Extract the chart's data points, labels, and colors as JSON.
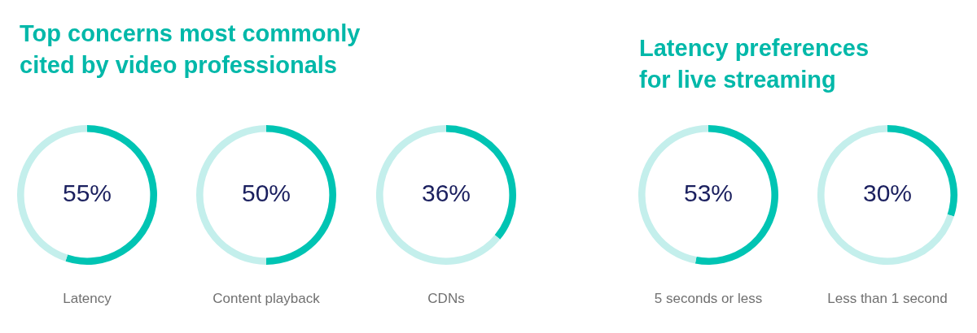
{
  "chart_data": [
    {
      "type": "donut",
      "title": "Top concerns most commonly cited by video professionals",
      "xlabel": "Latency",
      "categories": [
        null,
        null
      ],
      "values": [
        55,
        45
      ],
      "colors": [
        "#00c4b3",
        "#c4efec"
      ],
      "annotations": [
        "55%"
      ]
    },
    {
      "type": "donut",
      "xlabel": "Content playback",
      "categories": [
        null,
        null
      ],
      "values": [
        50,
        50
      ],
      "colors": [
        "#00c4b3",
        "#c4efec"
      ],
      "annotations": [
        "50%"
      ]
    },
    {
      "type": "donut",
      "xlabel": "CDNs",
      "categories": [
        null,
        null
      ],
      "values": [
        36,
        64
      ],
      "colors": [
        "#00c4b3",
        "#c4efec"
      ],
      "annotations": [
        "36%"
      ]
    },
    {
      "type": "donut",
      "title": "Latency preferences for live streaming",
      "xlabel": "5 seconds or less",
      "categories": [
        null,
        null
      ],
      "values": [
        53,
        47
      ],
      "colors": [
        "#00c4b3",
        "#c4efec"
      ],
      "annotations": [
        "53%"
      ]
    },
    {
      "type": "donut",
      "xlabel": "Less than 1 second",
      "categories": [
        null,
        null
      ],
      "values": [
        30,
        70
      ],
      "colors": [
        "#00c4b3",
        "#c4efec"
      ],
      "annotations": [
        "30%"
      ]
    }
  ]
}
